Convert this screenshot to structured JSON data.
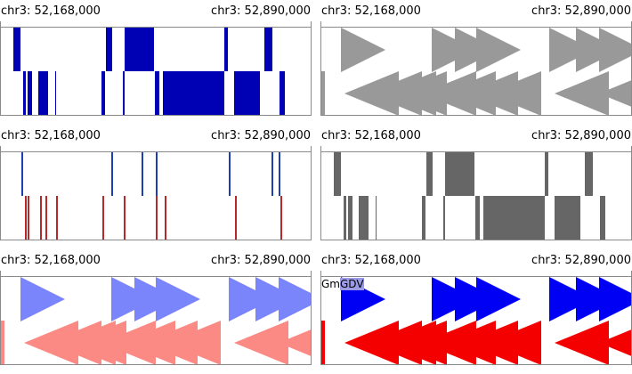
{
  "panels": [
    {
      "id": "p1",
      "start_label": "chr3: 52,168,000",
      "end_label": "chr3: 52,890,000",
      "style": "blocks",
      "colors": {
        "top": "#0000b4",
        "bottom": "#0000b4"
      }
    },
    {
      "id": "p2",
      "start_label": "chr3: 52,168,000",
      "end_label": "chr3: 52,890,000",
      "style": "arrows",
      "colors": {
        "top": "#999999",
        "bottom": "#999999"
      }
    },
    {
      "id": "p3",
      "start_label": "chr3: 52,168,000",
      "end_label": "chr3: 52,890,000",
      "style": "lines",
      "colors": {
        "top": "#1e3eb4",
        "bottom": "#b42a2a"
      }
    },
    {
      "id": "p4",
      "start_label": "chr3: 52,168,000",
      "end_label": "chr3: 52,890,000",
      "style": "blocks",
      "colors": {
        "top": "#666666",
        "bottom": "#666666"
      }
    },
    {
      "id": "p5",
      "start_label": "chr3: 52,168,000",
      "end_label": "chr3: 52,890,000",
      "style": "arrows",
      "colors": {
        "top": "#7a84fb",
        "bottom": "#fb8a84"
      }
    },
    {
      "id": "p6",
      "start_label": "chr3: 52,168,000",
      "end_label": "chr3: 52,890,000",
      "style": "arrows",
      "colors": {
        "top": "#0000f5",
        "bottom": "#f50000"
      },
      "feature_label": "GmGDV",
      "feature_label_highlight": "#9a9ae6"
    }
  ]
}
